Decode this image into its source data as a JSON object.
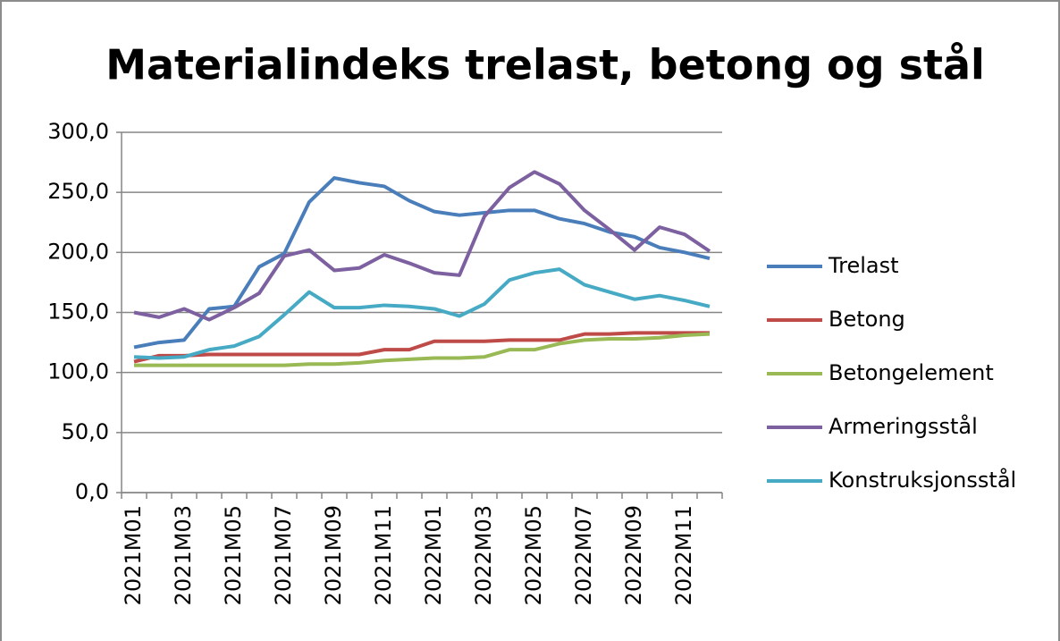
{
  "chart_data": {
    "type": "line",
    "title": "Materialindeks trelast, betong og stål",
    "categories": [
      "2021M01",
      null,
      "2021M03",
      null,
      "2021M05",
      null,
      "2021M07",
      null,
      "2021M09",
      null,
      "2021M11",
      null,
      "2022M01",
      null,
      "2022M03",
      null,
      "2022M05",
      null,
      "2022M07",
      null,
      "2022M09",
      null,
      "2022M11",
      null
    ],
    "series": [
      {
        "name": "Trelast",
        "color": "#4a7ebb",
        "values": [
          121,
          125,
          127,
          153,
          155,
          188,
          199,
          242,
          262,
          258,
          255,
          243,
          234,
          231,
          233,
          235,
          235,
          228,
          224,
          217,
          213,
          204,
          200,
          195
        ]
      },
      {
        "name": "Betong",
        "color": "#be4b48",
        "values": [
          109,
          114,
          114,
          115,
          115,
          115,
          115,
          115,
          115,
          115,
          119,
          119,
          126,
          126,
          126,
          127,
          127,
          127,
          132,
          132,
          133,
          133,
          133,
          133
        ]
      },
      {
        "name": "Betongelement",
        "color": "#98b954",
        "values": [
          106,
          106,
          106,
          106,
          106,
          106,
          106,
          107,
          107,
          108,
          110,
          111,
          112,
          112,
          113,
          119,
          119,
          124,
          127,
          128,
          128,
          129,
          131,
          132
        ]
      },
      {
        "name": "Armeringsstål",
        "color": "#7d60a0",
        "values": [
          150,
          146,
          153,
          144,
          154,
          166,
          197,
          202,
          185,
          187,
          198,
          191,
          183,
          181,
          230,
          254,
          267,
          257,
          235,
          219,
          202,
          221,
          215,
          201
        ]
      },
      {
        "name": "Konstruksjonsstål",
        "color": "#46aac5",
        "values": [
          113,
          112,
          113,
          119,
          122,
          130,
          148,
          167,
          154,
          154,
          156,
          155,
          153,
          147,
          157,
          177,
          183,
          186,
          173,
          167,
          161,
          164,
          160,
          155
        ]
      }
    ],
    "ylim": [
      0,
      300
    ],
    "yticks": [
      {
        "value": 0,
        "label": "0,0"
      },
      {
        "value": 50,
        "label": "50,0"
      },
      {
        "value": 100,
        "label": "100,0"
      },
      {
        "value": 150,
        "label": "150,0"
      },
      {
        "value": 200,
        "label": "200,0"
      },
      {
        "value": 250,
        "label": "250,0"
      },
      {
        "value": 300,
        "label": "300,0"
      }
    ],
    "grid": true,
    "legend": "right"
  }
}
